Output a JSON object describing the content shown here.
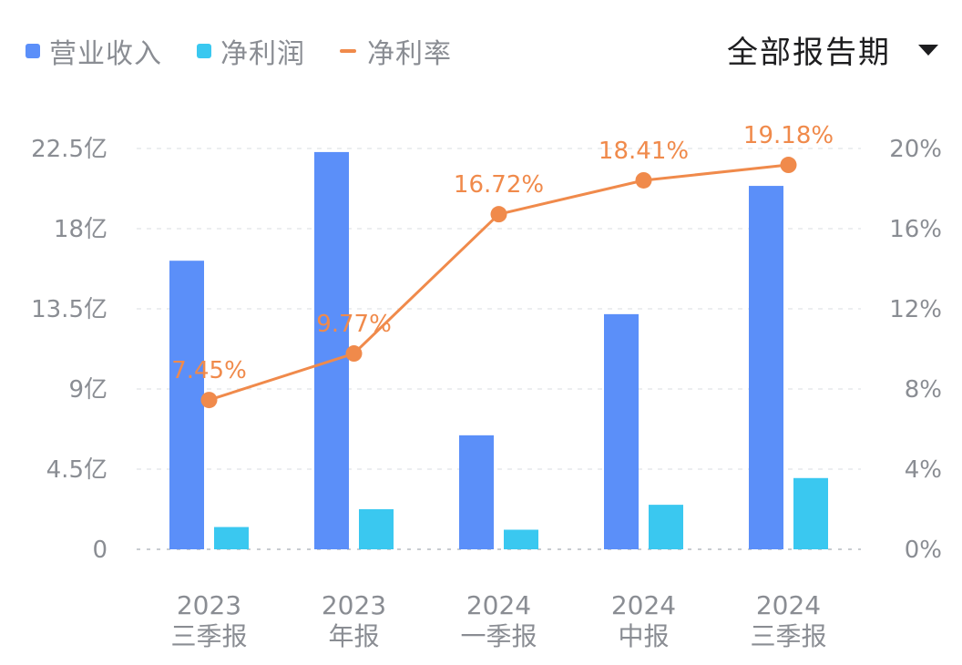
{
  "legend": [
    {
      "label": "营业收入",
      "color": "#5b8ff9",
      "shape": "square"
    },
    {
      "label": "净利润",
      "color": "#3ac8f0",
      "shape": "square"
    },
    {
      "label": "净利率",
      "color": "#f08a4b",
      "shape": "line"
    }
  ],
  "period_selector": {
    "label": "全部报告期",
    "icon": "caret-down-icon"
  },
  "chart_data": {
    "type": "bar",
    "categories": [
      [
        "2023",
        "三季报"
      ],
      [
        "2023",
        "年报"
      ],
      [
        "2024",
        "一季报"
      ],
      [
        "2024",
        "中报"
      ],
      [
        "2024",
        "三季报"
      ]
    ],
    "series": [
      {
        "name": "营业收入",
        "axis": "left",
        "type": "bar",
        "color": "#5b8ff9",
        "values": [
          16.2,
          22.3,
          6.4,
          13.2,
          20.4
        ]
      },
      {
        "name": "净利润",
        "axis": "left",
        "type": "bar",
        "color": "#3ac8f0",
        "values": [
          1.25,
          2.25,
          1.1,
          2.5,
          4.0
        ]
      },
      {
        "name": "净利率",
        "axis": "right",
        "type": "line",
        "color": "#f08a4b",
        "values": [
          7.45,
          9.77,
          16.72,
          18.41,
          19.18
        ],
        "labels": [
          "7.45%",
          "9.77%",
          "16.72%",
          "18.41%",
          "19.18%"
        ]
      }
    ],
    "y_left": {
      "ticks": [
        "0",
        "4.5亿",
        "9亿",
        "13.5亿",
        "18亿",
        "22.5亿"
      ],
      "values": [
        0,
        4.5,
        9,
        13.5,
        18,
        22.5
      ],
      "ylim": [
        0,
        22.5
      ]
    },
    "y_right": {
      "ticks": [
        "0%",
        "4%",
        "8%",
        "12%",
        "16%",
        "20%"
      ],
      "values": [
        0,
        4,
        8,
        12,
        16,
        20
      ],
      "ylim": [
        0,
        20
      ]
    },
    "grid": "dashed-horizontal",
    "legend_position": "top-left"
  }
}
